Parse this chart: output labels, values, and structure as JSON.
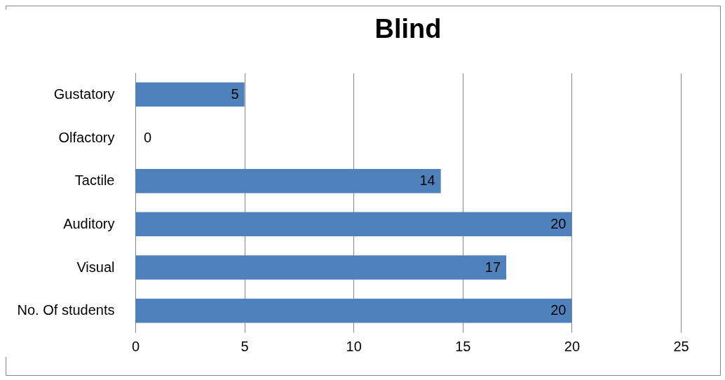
{
  "chart_data": {
    "type": "bar",
    "orientation": "horizontal",
    "title": "Blind",
    "categories": [
      "Gustatory",
      "Olfactory",
      "Tactile",
      "Auditory",
      "Visual",
      "No. Of students"
    ],
    "values": [
      5,
      0,
      14,
      20,
      17,
      20
    ],
    "color": "#4f81bd",
    "data_labels": true,
    "xlim": [
      0,
      25
    ],
    "xticks": [
      0,
      5,
      10,
      15,
      20,
      25
    ],
    "grid": "x"
  }
}
